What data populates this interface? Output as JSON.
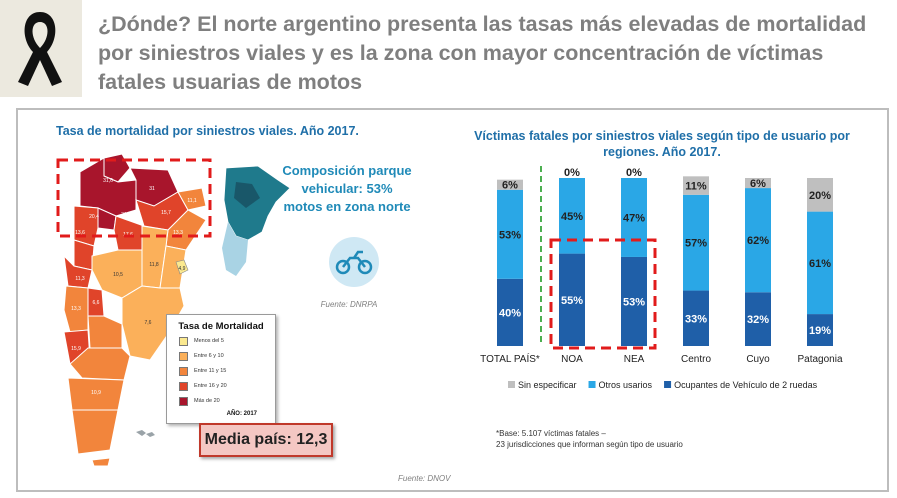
{
  "header": {
    "title": "¿Dónde? El norte argentino presenta las tasas más elevadas de mortalidad por siniestros viales y es la zona con mayor concentración de víctimas fatales usuarias de motos"
  },
  "map": {
    "title": "Tasa de mortalidad por siniestros viales. Año 2017.",
    "composition": "Composición parque vehicular: 53% motos en zona norte",
    "composition_source": "Fuente: DNRPA",
    "source": "Fuente: DNOV",
    "media": "Media país: 12,3",
    "region_labels": [
      "31",
      "31,6",
      "20,4",
      "15,7",
      "31,6",
      "17,6",
      "11,1",
      "13,3",
      "13,6",
      "11,8",
      "10,5",
      "11,3",
      "7,6",
      "6,6",
      "13,3",
      "15,9",
      "10,9",
      "4,9"
    ],
    "legend": {
      "title": "Tasa de Mortalidad",
      "items": [
        {
          "label": "Menos del 5",
          "color": "#fbe98f"
        },
        {
          "label": "Entre 6 y 10",
          "color": "#fbb05a"
        },
        {
          "label": "Entre 11 y 15",
          "color": "#f2853c"
        },
        {
          "label": "Entre 16 y 20",
          "color": "#e0442a"
        },
        {
          "label": "Más de 20",
          "color": "#a8152c"
        }
      ],
      "year": "AÑO: 2017"
    }
  },
  "chart_data": {
    "type": "bar",
    "stacked": true,
    "title": "Víctimas fatales por siniestros viales según tipo de usuario por regiones. Año 2017.",
    "categories": [
      "TOTAL PAÍS*",
      "NOA",
      "NEA",
      "Centro",
      "Cuyo",
      "Patagonia"
    ],
    "series": [
      {
        "name": "Ocupantes de Vehículo de 2 ruedas",
        "color": "#1f5fa8",
        "values": [
          40,
          55,
          53,
          33,
          32,
          19
        ],
        "labels": [
          "40%",
          "55%",
          "53%",
          "33%",
          "32%",
          "19%"
        ]
      },
      {
        "name": "Otros usarios",
        "color": "#2aa7e6",
        "values": [
          53,
          45,
          47,
          57,
          62,
          61
        ],
        "labels": [
          "53%",
          "45%",
          "47%",
          "57%",
          "62%",
          "61%"
        ]
      },
      {
        "name": "Sin especificar",
        "color": "#bfbfbf",
        "values": [
          6,
          0,
          0,
          11,
          6,
          20
        ],
        "labels": [
          "6%",
          "0%",
          "0%",
          "11%",
          "6%",
          "20%"
        ]
      }
    ],
    "legend_order": [
      "Sin especificar",
      "Otros usarios",
      "Ocupantes de Vehículo de 2 ruedas"
    ],
    "ylim": [
      0,
      100
    ]
  },
  "footnote": {
    "line1": "*Base: 5.107 víctimas fatales –",
    "line2": "23 jurisdicciones que informan según tipo de usuario"
  }
}
